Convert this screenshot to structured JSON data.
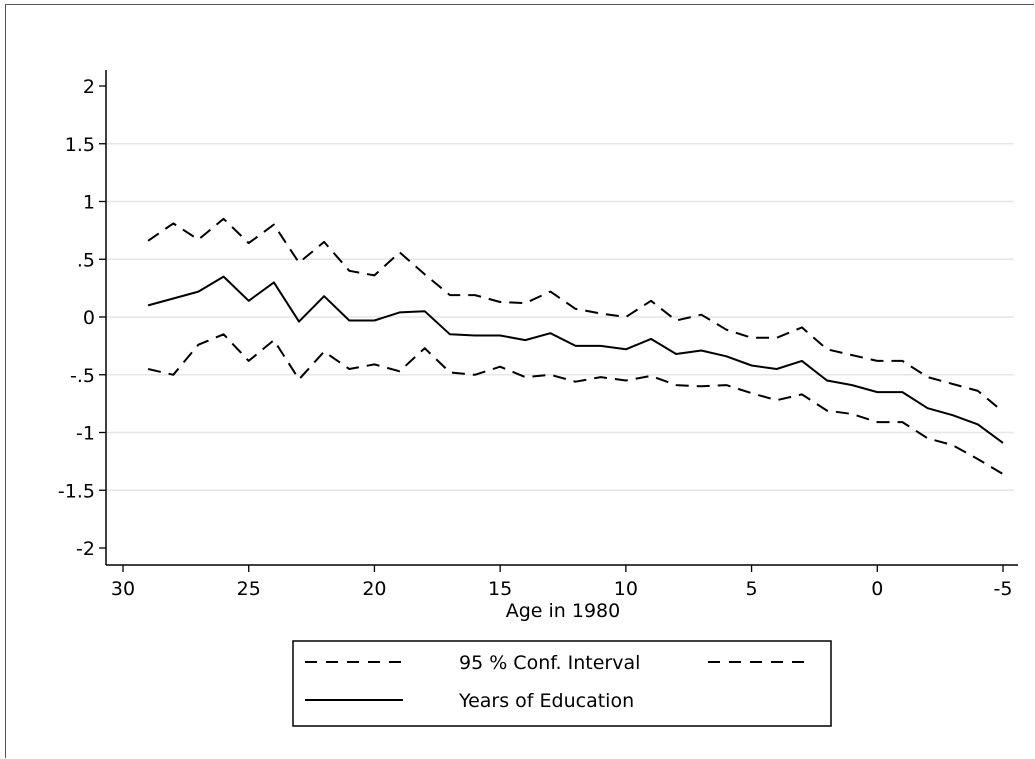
{
  "chart_data": {
    "type": "line",
    "title": "",
    "xlabel": "Age in 1980",
    "ylabel": "",
    "xlim": [
      30,
      -5
    ],
    "ylim": [
      -2,
      2
    ],
    "x_ticks": [
      30,
      25,
      20,
      15,
      10,
      5,
      0,
      -5
    ],
    "x_tick_labels": [
      "30",
      "25",
      "20",
      "15",
      "10",
      "5",
      "0",
      "-5"
    ],
    "y_ticks": [
      2,
      1.5,
      1,
      0.5,
      0,
      -0.5,
      -1,
      -1.5,
      -2
    ],
    "y_tick_labels": [
      "2",
      "1.5",
      "1",
      ".5",
      "0",
      "-.5",
      "-1",
      "-1.5",
      "-2"
    ],
    "grid": "horizontal",
    "legend_position": "bottom",
    "x": [
      29,
      28,
      27,
      26,
      25,
      24,
      23,
      22,
      21,
      20,
      19,
      18,
      17,
      16,
      15,
      14,
      13,
      12,
      11,
      10,
      9,
      8,
      7,
      6,
      5,
      4,
      3,
      2,
      1,
      0,
      -1,
      -2,
      -3,
      -4,
      -5
    ],
    "series": [
      {
        "name": "95 % Conf. Interval",
        "style": "dashed",
        "values": [
          0.66,
          0.81,
          0.67,
          0.85,
          0.64,
          0.8,
          0.47,
          0.65,
          0.4,
          0.36,
          0.56,
          0.37,
          0.19,
          0.19,
          0.13,
          0.12,
          0.22,
          0.07,
          0.03,
          0.0,
          0.14,
          -0.03,
          0.02,
          -0.11,
          -0.18,
          -0.18,
          -0.09,
          -0.28,
          -0.33,
          -0.38,
          -0.38,
          -0.52,
          -0.58,
          -0.64,
          -0.82
        ]
      },
      {
        "name": "95 % Conf. Interval",
        "style": "dashed",
        "values": [
          -0.45,
          -0.5,
          -0.24,
          -0.15,
          -0.38,
          -0.2,
          -0.54,
          -0.3,
          -0.45,
          -0.41,
          -0.47,
          -0.27,
          -0.48,
          -0.5,
          -0.43,
          -0.52,
          -0.5,
          -0.56,
          -0.52,
          -0.55,
          -0.51,
          -0.59,
          -0.6,
          -0.59,
          -0.66,
          -0.72,
          -0.67,
          -0.81,
          -0.84,
          -0.91,
          -0.91,
          -1.05,
          -1.11,
          -1.23,
          -1.36
        ]
      },
      {
        "name": "Years of Education",
        "style": "solid",
        "values": [
          0.1,
          0.16,
          0.22,
          0.35,
          0.14,
          0.3,
          -0.04,
          0.18,
          -0.03,
          -0.03,
          0.04,
          0.05,
          -0.15,
          -0.16,
          -0.16,
          -0.2,
          -0.14,
          -0.25,
          -0.25,
          -0.28,
          -0.19,
          -0.32,
          -0.29,
          -0.34,
          -0.42,
          -0.45,
          -0.38,
          -0.55,
          -0.59,
          -0.65,
          -0.65,
          -0.79,
          -0.85,
          -0.93,
          -1.09
        ]
      }
    ],
    "legend": {
      "items": [
        {
          "label": "95 % Conf. Interval",
          "style": "dashed",
          "paired": true
        },
        {
          "label": "Years of Education",
          "style": "solid"
        }
      ]
    }
  }
}
